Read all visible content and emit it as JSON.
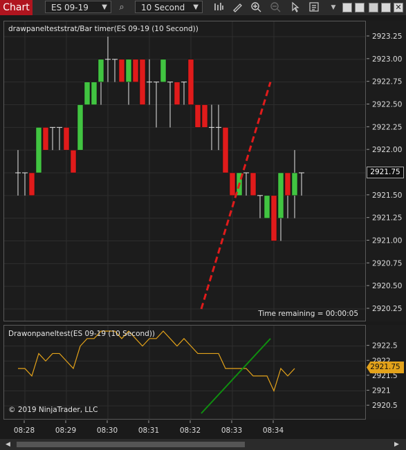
{
  "toolbar": {
    "title": "Chart",
    "instrument": "ES 09-19",
    "interval": "10 Second",
    "icons": [
      "search-icon",
      "bar-type-icon",
      "pencil-icon",
      "zoom-in-icon",
      "zoom-out-icon",
      "pointer-icon",
      "properties-icon",
      "menu-arrow-icon"
    ]
  },
  "main_panel": {
    "label": "drawpanelteststrat/Bar timer(ES 09-19 (10 Second))",
    "time_remaining": "Time remaining = 00:00:05",
    "current_price": "2921.75"
  },
  "sub_panel": {
    "label": "Drawonpaneltest(ES 09-19 (10 Second))",
    "copyright": "© 2019 NinjaTrader, LLC",
    "current_value": "2921.75"
  },
  "colors": {
    "up": "#41c441",
    "down": "#e01b1b",
    "wick": "#e8e8e8",
    "line": "#e3a21a",
    "dashed": "#e01b1b",
    "green_line": "#0f8f0f",
    "title_tab": "#b0151f"
  },
  "chart_data": [
    {
      "type": "candlestick",
      "ylim": [
        2920.25,
        2923.25
      ],
      "yticks": [
        2923.25,
        2923.0,
        2922.75,
        2922.5,
        2922.25,
        2922.0,
        2921.75,
        2921.5,
        2921.25,
        2921.0,
        2920.75,
        2920.5,
        2920.25
      ],
      "ytick_labels": [
        "2923.25",
        "2923.00",
        "2922.75",
        "2922.50",
        "2922.25",
        "2922.00",
        "2921.75",
        "2921.50",
        "2921.25",
        "2921.00",
        "2920.75",
        "2920.50",
        "2920.25"
      ],
      "xtick_labels": [
        "08:28",
        "08:29",
        "08:30",
        "08:31",
        "08:32",
        "08:33",
        "08:34"
      ],
      "xticks_bar_index": [
        1,
        7,
        13,
        19,
        25,
        31,
        37
      ],
      "bars": [
        {
          "o": 2921.75,
          "h": 2922.0,
          "l": 2921.5,
          "c": 2921.75
        },
        {
          "o": 2921.75,
          "h": 2921.75,
          "l": 2921.5,
          "c": 2921.75
        },
        {
          "o": 2921.75,
          "h": 2921.75,
          "l": 2921.5,
          "c": 2921.5
        },
        {
          "o": 2921.75,
          "h": 2922.25,
          "l": 2921.75,
          "c": 2922.25
        },
        {
          "o": 2922.25,
          "h": 2922.25,
          "l": 2922.0,
          "c": 2922.0
        },
        {
          "o": 2922.25,
          "h": 2922.25,
          "l": 2922.0,
          "c": 2922.25
        },
        {
          "o": 2922.25,
          "h": 2922.25,
          "l": 2922.0,
          "c": 2922.25
        },
        {
          "o": 2922.25,
          "h": 2922.25,
          "l": 2922.0,
          "c": 2922.0
        },
        {
          "o": 2922.0,
          "h": 2922.0,
          "l": 2921.75,
          "c": 2921.75
        },
        {
          "o": 2922.0,
          "h": 2922.5,
          "l": 2922.0,
          "c": 2922.5
        },
        {
          "o": 2922.5,
          "h": 2922.75,
          "l": 2922.5,
          "c": 2922.75
        },
        {
          "o": 2922.5,
          "h": 2922.75,
          "l": 2922.5,
          "c": 2922.75
        },
        {
          "o": 2922.75,
          "h": 2923.0,
          "l": 2922.5,
          "c": 2923.0
        },
        {
          "o": 2923.0,
          "h": 2923.25,
          "l": 2922.75,
          "c": 2923.0
        },
        {
          "o": 2923.0,
          "h": 2923.0,
          "l": 2922.75,
          "c": 2923.0
        },
        {
          "o": 2923.0,
          "h": 2923.0,
          "l": 2922.75,
          "c": 2922.75
        },
        {
          "o": 2922.75,
          "h": 2923.0,
          "l": 2922.5,
          "c": 2923.0
        },
        {
          "o": 2923.0,
          "h": 2923.0,
          "l": 2922.75,
          "c": 2922.75
        },
        {
          "o": 2923.0,
          "h": 2923.0,
          "l": 2922.5,
          "c": 2922.5
        },
        {
          "o": 2922.75,
          "h": 2923.0,
          "l": 2922.5,
          "c": 2922.75
        },
        {
          "o": 2922.75,
          "h": 2922.75,
          "l": 2922.25,
          "c": 2922.75
        },
        {
          "o": 2922.75,
          "h": 2923.0,
          "l": 2922.75,
          "c": 2923.0
        },
        {
          "o": 2922.75,
          "h": 2922.75,
          "l": 2922.25,
          "c": 2922.75
        },
        {
          "o": 2922.75,
          "h": 2922.75,
          "l": 2922.5,
          "c": 2922.5
        },
        {
          "o": 2922.75,
          "h": 2922.75,
          "l": 2922.5,
          "c": 2922.75
        },
        {
          "o": 2923.0,
          "h": 2923.0,
          "l": 2922.5,
          "c": 2922.5
        },
        {
          "o": 2922.5,
          "h": 2922.5,
          "l": 2922.25,
          "c": 2922.25
        },
        {
          "o": 2922.5,
          "h": 2922.5,
          "l": 2922.25,
          "c": 2922.25
        },
        {
          "o": 2922.25,
          "h": 2922.5,
          "l": 2922.0,
          "c": 2922.25
        },
        {
          "o": 2922.25,
          "h": 2922.5,
          "l": 2922.0,
          "c": 2922.25
        },
        {
          "o": 2922.25,
          "h": 2922.25,
          "l": 2921.75,
          "c": 2921.75
        },
        {
          "o": 2921.75,
          "h": 2921.75,
          "l": 2921.5,
          "c": 2921.5
        },
        {
          "o": 2921.5,
          "h": 2921.75,
          "l": 2921.5,
          "c": 2921.75
        },
        {
          "o": 2921.75,
          "h": 2921.75,
          "l": 2921.5,
          "c": 2921.75
        },
        {
          "o": 2921.75,
          "h": 2921.75,
          "l": 2921.5,
          "c": 2921.5
        },
        {
          "o": 2921.5,
          "h": 2921.5,
          "l": 2921.25,
          "c": 2921.5
        },
        {
          "o": 2921.25,
          "h": 2921.5,
          "l": 2921.25,
          "c": 2921.5
        },
        {
          "o": 2921.5,
          "h": 2921.5,
          "l": 2921.0,
          "c": 2921.0
        },
        {
          "o": 2921.25,
          "h": 2921.75,
          "l": 2921.0,
          "c": 2921.75
        },
        {
          "o": 2921.75,
          "h": 2921.75,
          "l": 2921.25,
          "c": 2921.5
        },
        {
          "o": 2921.5,
          "h": 2922.0,
          "l": 2921.25,
          "c": 2921.75
        },
        {
          "o": 2921.75,
          "h": 2921.75,
          "l": 2921.5,
          "c": 2921.75
        }
      ],
      "dashed_line": {
        "start": {
          "bar": 26.5,
          "price": 2920.25
        },
        "end": {
          "bar": 36.5,
          "price": 2922.75
        }
      }
    },
    {
      "type": "line",
      "ylim": [
        2920.25,
        2923.0
      ],
      "yticks": [
        2922.5,
        2922.0,
        2921.5,
        2921.0,
        2920.5
      ],
      "ytick_labels": [
        "2922.5",
        "2922",
        "2921.5",
        "2921",
        "2920.5"
      ],
      "values": [
        2921.75,
        2921.75,
        2921.5,
        2922.25,
        2922.0,
        2922.25,
        2922.25,
        2922.0,
        2921.75,
        2922.5,
        2922.75,
        2922.75,
        2923.0,
        2923.0,
        2923.0,
        2922.75,
        2923.0,
        2922.75,
        2922.5,
        2922.75,
        2922.75,
        2923.0,
        2922.75,
        2922.5,
        2922.75,
        2922.5,
        2922.25,
        2922.25,
        2922.25,
        2922.25,
        2921.75,
        2921.75,
        2921.75,
        2921.75,
        2921.5,
        2921.5,
        2921.5,
        2921.0,
        2921.75,
        2921.5,
        2921.75
      ],
      "green_line": {
        "start": {
          "bar": 26.5,
          "value": 2920.25
        },
        "end": {
          "bar": 36.5,
          "value": 2922.75
        }
      }
    }
  ]
}
